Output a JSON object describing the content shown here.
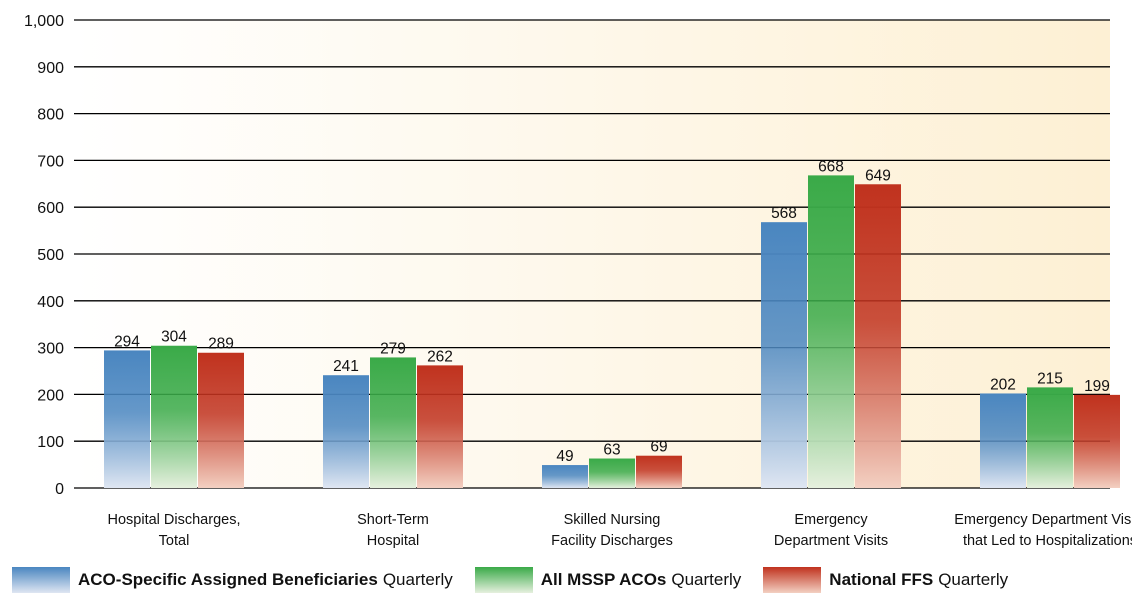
{
  "chart_data": {
    "type": "bar",
    "categories": [
      [
        "Hospital Discharges,",
        "Total"
      ],
      [
        "Short-Term",
        "Hospital"
      ],
      [
        "Skilled Nursing",
        "Facility Discharges"
      ],
      [
        "Emergency",
        "Department Visits"
      ],
      [
        "Emergency Department Visits",
        "that Led to Hospitalizations"
      ]
    ],
    "series": [
      {
        "name": "ACO-Specific Assigned Beneficiaries",
        "suffix": "Quarterly",
        "color": "#4a86c0",
        "light": "#dfe6f2",
        "values": [
          294,
          241,
          49,
          568,
          202
        ]
      },
      {
        "name": "All MSSP ACOs",
        "suffix": "Quarterly",
        "color": "#3aaa48",
        "light": "#e6f0de",
        "values": [
          304,
          279,
          63,
          668,
          215
        ]
      },
      {
        "name": "National FFS",
        "suffix": "Quarterly",
        "color": "#c0321e",
        "light": "#f3d0c2",
        "values": [
          289,
          262,
          69,
          649,
          199
        ]
      }
    ],
    "y_ticks": [
      "0",
      "100",
      "200",
      "300",
      "400",
      "500",
      "600",
      "700",
      "800",
      "900",
      "1,000"
    ],
    "ylim": [
      0,
      1000
    ],
    "grid": true,
    "background_gradient": [
      "#ffffff",
      "#fdf0d4"
    ],
    "legend_position": "bottom"
  }
}
